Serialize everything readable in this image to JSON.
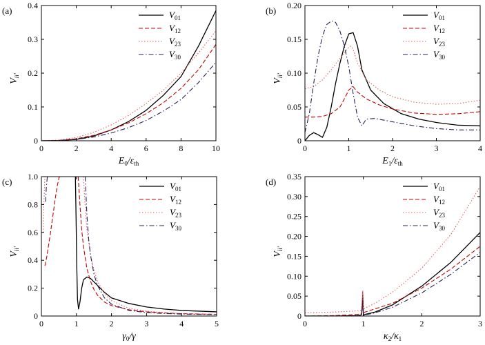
{
  "chart_data": [
    {
      "type": "line",
      "panel_label": "(a)",
      "xlabel": "E0/εth",
      "xlabel_parts": {
        "base": "E",
        "sub1": "0",
        "mid": "/ε",
        "sub2": "th"
      },
      "ylabel": "Vii'",
      "xlim": [
        0,
        10
      ],
      "ylim": [
        0,
        0.4
      ],
      "xticks": [
        0,
        2,
        4,
        6,
        8,
        10
      ],
      "xtick_labels": [
        "0",
        "2",
        "4",
        "6",
        "8",
        "10"
      ],
      "yticks": [
        0,
        0.1,
        0.2,
        0.3,
        0.4
      ],
      "ytick_labels": [
        "0",
        "0.1",
        "0.2",
        "0.3",
        "0.4"
      ],
      "legend_position": "top-right",
      "series": [
        {
          "name": "V01",
          "name_base": "V",
          "name_sub": "01",
          "color": "#000000",
          "dash": "solid",
          "x": [
            0,
            1,
            2,
            3,
            4,
            5,
            6,
            7,
            8,
            9,
            10
          ],
          "y": [
            0,
            0.001,
            0.004,
            0.014,
            0.032,
            0.057,
            0.09,
            0.135,
            0.19,
            0.28,
            0.385
          ]
        },
        {
          "name": "V12",
          "name_base": "V",
          "name_sub": "12",
          "color": "#c00000",
          "dash": "dashed",
          "x": [
            0,
            1,
            2,
            3,
            4,
            5,
            6,
            7,
            8,
            9,
            10
          ],
          "y": [
            0,
            0.001,
            0.006,
            0.016,
            0.032,
            0.053,
            0.08,
            0.113,
            0.155,
            0.21,
            0.285
          ]
        },
        {
          "name": "V23",
          "name_base": "V",
          "name_sub": "23",
          "color": "#e06060",
          "dash": "dotted",
          "x": [
            0,
            1,
            2,
            3,
            4,
            5,
            6,
            7,
            8,
            9,
            10
          ],
          "y": [
            0,
            0.002,
            0.01,
            0.025,
            0.047,
            0.075,
            0.11,
            0.15,
            0.2,
            0.26,
            0.325
          ]
        },
        {
          "name": "V30",
          "name_base": "V",
          "name_sub": "30",
          "color": "#202050",
          "dash": "dashdot",
          "x": [
            0,
            1,
            2,
            3,
            4,
            5,
            6,
            7,
            8,
            9,
            10
          ],
          "y": [
            0,
            0.001,
            0.004,
            0.011,
            0.023,
            0.039,
            0.06,
            0.088,
            0.122,
            0.172,
            0.232
          ]
        }
      ]
    },
    {
      "type": "line",
      "panel_label": "(b)",
      "xlabel": "E1/εth",
      "xlabel_parts": {
        "base": "E",
        "sub1": "1",
        "mid": "/ε",
        "sub2": "th"
      },
      "ylabel": "Vii'",
      "xlim": [
        0,
        4
      ],
      "ylim": [
        0,
        0.2
      ],
      "xticks": [
        0,
        1,
        2,
        3,
        4
      ],
      "xtick_labels": [
        "0",
        "1",
        "2",
        "3",
        "4"
      ],
      "yticks": [
        0,
        0.05,
        0.1,
        0.15,
        0.2
      ],
      "ytick_labels": [
        "0",
        "0.05",
        "0.10",
        "0.15",
        "0.20"
      ],
      "legend_position": "top-right",
      "series": [
        {
          "name": "V01",
          "name_base": "V",
          "name_sub": "01",
          "color": "#000000",
          "dash": "solid",
          "x": [
            0,
            0.1,
            0.2,
            0.3,
            0.4,
            0.5,
            0.6,
            0.7,
            0.8,
            0.9,
            1.0,
            1.1,
            1.2,
            1.3,
            1.5,
            1.8,
            2.2,
            2.6,
            3.0,
            3.5,
            4.0
          ],
          "y": [
            0,
            0.008,
            0.012,
            0.009,
            0.005,
            0.02,
            0.05,
            0.085,
            0.115,
            0.14,
            0.158,
            0.16,
            0.14,
            0.105,
            0.075,
            0.055,
            0.04,
            0.032,
            0.027,
            0.023,
            0.022
          ]
        },
        {
          "name": "V12",
          "name_base": "V",
          "name_sub": "12",
          "color": "#c00000",
          "dash": "dashed",
          "x": [
            0,
            0.2,
            0.4,
            0.6,
            0.8,
            0.9,
            1.0,
            1.1,
            1.2,
            1.4,
            1.7,
            2.0,
            2.5,
            3.0,
            3.5,
            4.0
          ],
          "y": [
            0.035,
            0.035,
            0.036,
            0.04,
            0.05,
            0.062,
            0.075,
            0.08,
            0.072,
            0.062,
            0.053,
            0.047,
            0.041,
            0.039,
            0.04,
            0.043
          ]
        },
        {
          "name": "V23",
          "name_base": "V",
          "name_sub": "23",
          "color": "#e06060",
          "dash": "dotted",
          "x": [
            0,
            0.2,
            0.4,
            0.6,
            0.8,
            0.9,
            1.0,
            1.05,
            1.1,
            1.2,
            1.4,
            1.7,
            2.0,
            2.5,
            3.0,
            3.5,
            4.0
          ],
          "y": [
            0.077,
            0.08,
            0.09,
            0.105,
            0.122,
            0.13,
            0.138,
            0.14,
            0.135,
            0.115,
            0.09,
            0.075,
            0.065,
            0.057,
            0.054,
            0.055,
            0.06
          ]
        },
        {
          "name": "V30",
          "name_base": "V",
          "name_sub": "30",
          "color": "#202050",
          "dash": "dashdot",
          "x": [
            0,
            0.1,
            0.2,
            0.3,
            0.4,
            0.5,
            0.6,
            0.65,
            0.7,
            0.8,
            0.9,
            1.0,
            1.1,
            1.2,
            1.3,
            1.4,
            1.6,
            2.0,
            2.5,
            3.0,
            3.5,
            4.0
          ],
          "y": [
            0.012,
            0.04,
            0.085,
            0.125,
            0.155,
            0.172,
            0.177,
            0.177,
            0.175,
            0.162,
            0.14,
            0.11,
            0.07,
            0.035,
            0.022,
            0.032,
            0.033,
            0.028,
            0.022,
            0.018,
            0.016,
            0.016
          ]
        }
      ]
    },
    {
      "type": "line",
      "panel_label": "(c)",
      "xlabel": "γ0/γ",
      "xlabel_parts": {
        "base": "γ",
        "sub1": "0",
        "mid": "/γ",
        "sub2": ""
      },
      "ylabel": "Vii'",
      "xlim": [
        0,
        5
      ],
      "ylim": [
        0,
        1.0
      ],
      "xticks": [
        0,
        1,
        2,
        3,
        4,
        5
      ],
      "xtick_labels": [
        "0",
        "1",
        "2",
        "3",
        "4",
        "5"
      ],
      "yticks": [
        0,
        0.2,
        0.4,
        0.6,
        0.8,
        1.0
      ],
      "ytick_labels": [
        "0",
        "0.2",
        "0.4",
        "0.6",
        "0.8",
        "1.0"
      ],
      "legend_position": "top-right",
      "series": [
        {
          "name": "V01",
          "name_base": "V",
          "name_sub": "01",
          "color": "#000000",
          "dash": "solid",
          "x": [
            0.97,
            0.99,
            1.01,
            1.03,
            1.06,
            1.1,
            1.15,
            1.2,
            1.3,
            1.4,
            1.6,
            1.8,
            2.0,
            2.5,
            3.0,
            3.5,
            4.0,
            4.5,
            5.0
          ],
          "y": [
            1.0,
            0.7,
            0.35,
            0.12,
            0.05,
            0.1,
            0.2,
            0.26,
            0.28,
            0.27,
            0.22,
            0.17,
            0.13,
            0.09,
            0.065,
            0.05,
            0.04,
            0.035,
            0.03
          ]
        },
        {
          "name": "V12",
          "name_base": "V",
          "name_sub": "12",
          "color": "#c00000",
          "dash": "dashed",
          "x": [
            0.1,
            0.15,
            0.2,
            0.25,
            0.3,
            0.35,
            0.4,
            0.45,
            0.5,
            0.52
          ],
          "y": [
            0.36,
            0.42,
            0.5,
            0.58,
            0.67,
            0.76,
            0.85,
            0.93,
            0.99,
            1.0
          ],
          "x2": [
            1.05,
            1.1,
            1.15,
            1.2,
            1.3,
            1.4,
            1.5,
            1.6,
            1.8,
            2.0,
            2.5,
            3.0,
            3.5,
            4.0,
            5.0
          ],
          "y2": [
            1.0,
            0.8,
            0.62,
            0.5,
            0.34,
            0.25,
            0.19,
            0.15,
            0.1,
            0.075,
            0.045,
            0.03,
            0.022,
            0.017,
            0.012
          ]
        },
        {
          "name": "V23",
          "name_base": "V",
          "name_sub": "23",
          "color": "#e06060",
          "dash": "dotted",
          "x": [
            0.05,
            0.07,
            0.1
          ],
          "y": [
            0.6,
            0.8,
            1.0
          ],
          "x2": [
            1.2,
            1.25,
            1.3,
            1.4,
            1.5,
            1.6,
            1.8,
            2.0,
            2.5,
            3.0,
            3.5,
            4.0,
            5.0
          ],
          "y2": [
            1.0,
            0.78,
            0.62,
            0.44,
            0.33,
            0.25,
            0.16,
            0.11,
            0.055,
            0.035,
            0.025,
            0.018,
            0.012
          ]
        },
        {
          "name": "V30",
          "name_base": "V",
          "name_sub": "30",
          "color": "#202050",
          "dash": "dashdot",
          "x": [
            0.12,
            0.14,
            0.17
          ],
          "y": [
            0.82,
            0.92,
            1.0
          ],
          "x2": [
            1.25,
            1.3,
            1.35,
            1.4,
            1.5,
            1.6,
            1.8,
            2.0,
            2.5,
            3.0,
            3.5,
            4.0,
            5.0
          ],
          "y2": [
            1.0,
            0.72,
            0.55,
            0.44,
            0.3,
            0.22,
            0.13,
            0.085,
            0.04,
            0.025,
            0.018,
            0.014,
            0.01
          ]
        }
      ]
    },
    {
      "type": "line",
      "panel_label": "(d)",
      "xlabel": "κ2/κ1",
      "xlabel_parts": {
        "base": "κ",
        "sub1": "2",
        "mid": "/κ",
        "sub2": "1"
      },
      "ylabel": "Vii'",
      "xlim": [
        0,
        3
      ],
      "ylim": [
        0,
        0.35
      ],
      "xticks": [
        0,
        1,
        2,
        3
      ],
      "xtick_labels": [
        "0",
        "1",
        "2",
        "3"
      ],
      "yticks": [
        0,
        0.05,
        0.1,
        0.15,
        0.2,
        0.25,
        0.3,
        0.35
      ],
      "ytick_labels": [
        "0",
        "0.05",
        "0.10",
        "0.15",
        "0.20",
        "0.25",
        "0.30",
        "0.35"
      ],
      "legend_position": "top-right",
      "series": [
        {
          "name": "V01",
          "name_base": "V",
          "name_sub": "01",
          "color": "#000000",
          "dash": "solid",
          "x": [
            0,
            0.5,
            0.9,
            0.97,
            0.99,
            1.0,
            1.01,
            1.03,
            1.2,
            1.5,
            2.0,
            2.5,
            3.0
          ],
          "y": [
            0.0,
            0.0,
            0.001,
            0.003,
            0.05,
            0.003,
            0.003,
            0.004,
            0.01,
            0.028,
            0.075,
            0.135,
            0.21
          ]
        },
        {
          "name": "V12",
          "name_base": "V",
          "name_sub": "12",
          "color": "#c00000",
          "dash": "dashed",
          "x": [
            0,
            0.5,
            0.9,
            0.97,
            0.99,
            1.0,
            1.01,
            1.03,
            1.2,
            1.5,
            2.0,
            2.5,
            3.0
          ],
          "y": [
            0.0,
            0.001,
            0.004,
            0.006,
            0.06,
            0.008,
            0.009,
            0.01,
            0.018,
            0.032,
            0.07,
            0.118,
            0.175
          ]
        },
        {
          "name": "V23",
          "name_base": "V",
          "name_sub": "23",
          "color": "#e06060",
          "dash": "dotted",
          "x": [
            0,
            0.5,
            0.9,
            0.97,
            0.99,
            1.0,
            1.01,
            1.03,
            1.2,
            1.5,
            2.0,
            2.5,
            3.0
          ],
          "y": [
            0.008,
            0.01,
            0.013,
            0.015,
            0.065,
            0.017,
            0.018,
            0.02,
            0.032,
            0.06,
            0.12,
            0.205,
            0.325
          ]
        },
        {
          "name": "V30",
          "name_base": "V",
          "name_sub": "30",
          "color": "#202050",
          "dash": "dashdot",
          "x": [
            0,
            0.5,
            0.9,
            0.97,
            0.99,
            1.0,
            1.01,
            1.03,
            1.2,
            1.5,
            2.0,
            2.5,
            3.0
          ],
          "y": [
            0.0,
            0.0,
            0.001,
            0.002,
            0.04,
            0.002,
            0.002,
            0.003,
            0.008,
            0.022,
            0.058,
            0.105,
            0.16
          ]
        }
      ]
    }
  ]
}
